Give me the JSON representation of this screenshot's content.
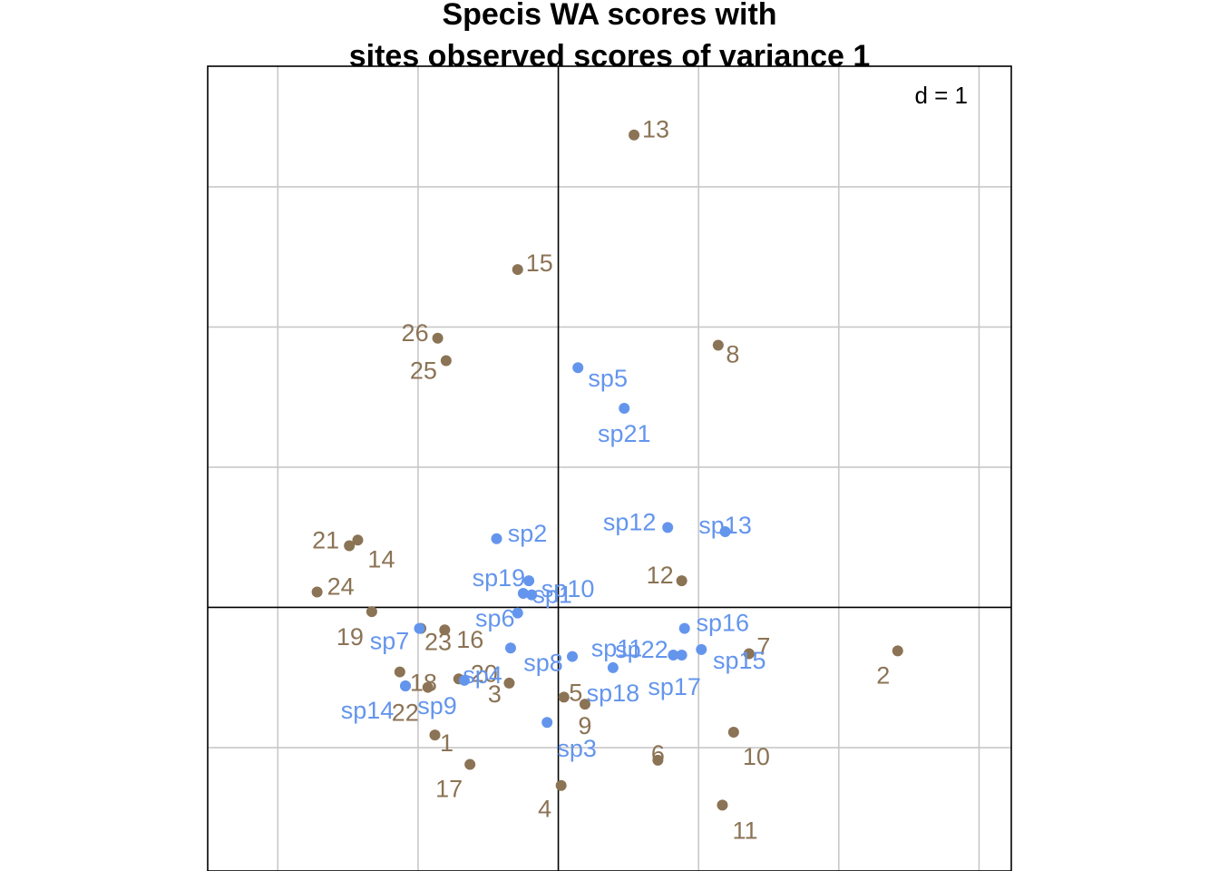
{
  "chart_data": {
    "type": "scatter",
    "title": "Specis WA scores with\nsites observed scores of variance 1",
    "grid_label": "d = 1",
    "grid": true,
    "grid_step": 1,
    "xlim": [
      -2.5,
      3.23
    ],
    "ylim": [
      -1.88,
      3.86
    ],
    "colors": {
      "sites": "#8b7355",
      "species": "#6495ed",
      "grid": "#c8c8c8",
      "axes": "#000000"
    },
    "series": [
      {
        "points": [
          {
            "label": "1",
            "x": -0.88,
            "y": -0.91
          },
          {
            "label": "2",
            "x": 2.42,
            "y": -0.31
          },
          {
            "label": "3",
            "x": -0.35,
            "y": -0.54
          },
          {
            "label": "4",
            "x": 0.02,
            "y": -1.27
          },
          {
            "label": "5",
            "x": 0.04,
            "y": -0.64
          },
          {
            "label": "6",
            "x": 0.71,
            "y": -1.09
          },
          {
            "label": "7",
            "x": 1.36,
            "y": -0.33
          },
          {
            "label": "8",
            "x": 1.14,
            "y": 1.87
          },
          {
            "label": "9",
            "x": 0.19,
            "y": -0.69
          },
          {
            "label": "10",
            "x": 1.25,
            "y": -0.89
          },
          {
            "label": "11",
            "x": 1.17,
            "y": -1.41
          },
          {
            "label": "12",
            "x": 0.88,
            "y": 0.19
          },
          {
            "label": "13",
            "x": 0.54,
            "y": 3.37
          },
          {
            "label": "14",
            "x": -1.43,
            "y": 0.48
          },
          {
            "label": "15",
            "x": -0.29,
            "y": 2.41
          },
          {
            "label": "16",
            "x": -0.81,
            "y": -0.16
          },
          {
            "label": "17",
            "x": -0.63,
            "y": -1.12
          },
          {
            "label": "18",
            "x": -1.13,
            "y": -0.46
          },
          {
            "label": "19",
            "x": -1.33,
            "y": -0.03
          },
          {
            "label": "20",
            "x": -0.71,
            "y": -0.51
          },
          {
            "label": "21",
            "x": -1.49,
            "y": 0.44
          },
          {
            "label": "22",
            "x": -0.93,
            "y": -0.57
          },
          {
            "label": "23",
            "x": -0.98,
            "y": -0.15
          },
          {
            "label": "24",
            "x": -1.72,
            "y": 0.11
          },
          {
            "label": "25",
            "x": -0.8,
            "y": 1.76
          },
          {
            "label": "26",
            "x": -0.86,
            "y": 1.92
          }
        ]
      },
      {
        "points": [
          {
            "label": "sp1",
            "x": -0.19,
            "y": 0.09
          },
          {
            "label": "sp2",
            "x": -0.44,
            "y": 0.49
          },
          {
            "label": "sp3",
            "x": -0.08,
            "y": -0.82
          },
          {
            "label": "sp4",
            "x": -0.67,
            "y": -0.52
          },
          {
            "label": "sp5",
            "x": 0.14,
            "y": 1.71
          },
          {
            "label": "sp6",
            "x": -0.29,
            "y": -0.04
          },
          {
            "label": "sp7",
            "x": -0.99,
            "y": -0.15
          },
          {
            "label": "sp8",
            "x": -0.34,
            "y": -0.29
          },
          {
            "label": "sp9",
            "x": -1.09,
            "y": -0.56
          },
          {
            "label": "sp10",
            "x": -0.21,
            "y": 0.19
          },
          {
            "label": "sp11",
            "x": 0.1,
            "y": -0.35
          },
          {
            "label": "sp12",
            "x": 0.78,
            "y": 0.57
          },
          {
            "label": "sp13",
            "x": 1.19,
            "y": 0.54
          },
          {
            "label": "sp14",
            "x": -1.09,
            "y": -0.56
          },
          {
            "label": "sp15",
            "x": 1.02,
            "y": -0.3
          },
          {
            "label": "sp16",
            "x": 0.9,
            "y": -0.15
          },
          {
            "label": "sp17",
            "x": 0.88,
            "y": -0.34
          },
          {
            "label": "sp18",
            "x": 0.39,
            "y": -0.43
          },
          {
            "label": "sp19",
            "x": -0.25,
            "y": 0.1
          },
          {
            "label": "sp21",
            "x": 0.47,
            "y": 1.42
          },
          {
            "label": "sp22",
            "x": 0.82,
            "y": -0.34
          }
        ]
      }
    ]
  }
}
